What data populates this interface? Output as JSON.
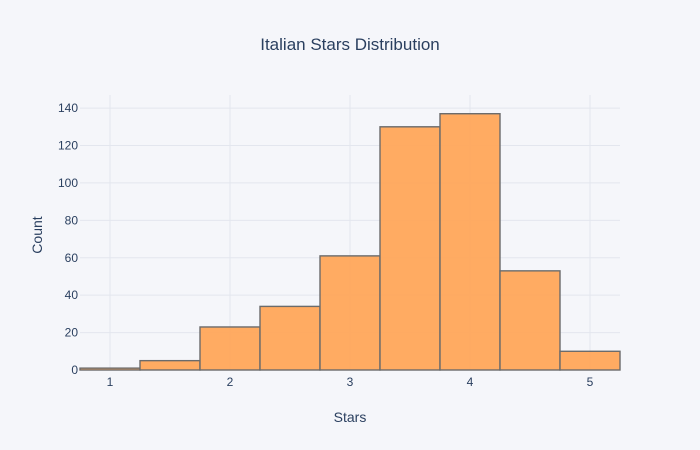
{
  "chart_data": {
    "type": "bar",
    "subtype": "histogram",
    "title": "Italian Stars Distribution",
    "xlabel": "Stars",
    "ylabel": "Count",
    "xlim": [
      0.75,
      5.25
    ],
    "ylim": [
      0,
      147
    ],
    "x_ticks": [
      1,
      2,
      3,
      4,
      5
    ],
    "y_ticks": [
      0,
      20,
      40,
      60,
      80,
      100,
      120,
      140
    ],
    "bin_width": 0.5,
    "bins": [
      {
        "start": 0.75,
        "end": 1.25,
        "value": 1
      },
      {
        "start": 1.25,
        "end": 1.75,
        "value": 5
      },
      {
        "start": 1.75,
        "end": 2.25,
        "value": 23
      },
      {
        "start": 2.25,
        "end": 2.75,
        "value": 34
      },
      {
        "start": 2.75,
        "end": 3.25,
        "value": 61
      },
      {
        "start": 3.25,
        "end": 3.75,
        "value": 130
      },
      {
        "start": 3.75,
        "end": 4.25,
        "value": 137
      },
      {
        "start": 4.25,
        "end": 4.75,
        "value": 53
      },
      {
        "start": 4.75,
        "end": 5.25,
        "value": 10
      }
    ],
    "grid": true,
    "colors": {
      "bar_fill": "#ffa75a",
      "bar_stroke": "#6b6b6b",
      "background": "#f5f6fa",
      "grid": "#e3e6ee",
      "text": "#2a3f5f"
    }
  }
}
